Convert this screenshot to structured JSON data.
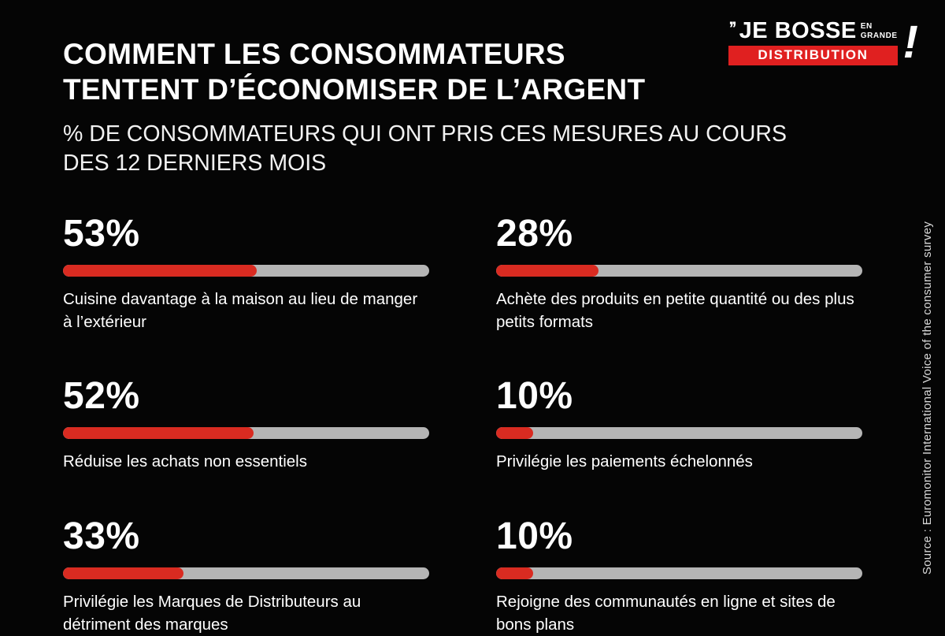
{
  "header": {
    "title_line1": "COMMENT LES CONSOMMATEURS",
    "title_line2": "TENTENT D’ÉCONOMISER DE L’ARGENT",
    "subtitle": "% DE CONSOMMATEURS QUI ONT PRIS CES MESURES AU COURS DES 12 DERNIERS MOIS"
  },
  "logo": {
    "quote": "’’",
    "name": "JE BOSSE",
    "stack_top": "EN",
    "stack_bottom": "GRANDE",
    "banner": "DISTRIBUTION",
    "exclamation": "!"
  },
  "source": "Source : Euromonitor International Voice of the consumer survey",
  "colors": {
    "background": "#050505",
    "accent_red": "#d92b21",
    "logo_red": "#e02020",
    "bar_track_gray": "#b5b5b5",
    "text_white": "#ffffff"
  },
  "chart_data": {
    "type": "bar",
    "title": "COMMENT LES CONSOMMATEURS TENTENT D’ÉCONOMISER DE L’ARGENT",
    "subtitle": "% DE CONSOMMATEURS QUI ONT PRIS CES MESURES AU COURS DES 12 DERNIERS MOIS",
    "unit": "%",
    "xlim": [
      0,
      100
    ],
    "legend": false,
    "grid": false,
    "items": [
      {
        "value": 53,
        "display": "53%",
        "label": "Cuisine davantage à la maison au lieu de manger à l’extérieur"
      },
      {
        "value": 28,
        "display": "28%",
        "label": "Achète des produits en petite quantité ou des plus petits formats"
      },
      {
        "value": 52,
        "display": "52%",
        "label": "Réduise les achats non essentiels"
      },
      {
        "value": 10,
        "display": "10%",
        "label": "Privilégie les paiements échelonnés"
      },
      {
        "value": 33,
        "display": "33%",
        "label": "Privilégie les Marques de Distributeurs au détriment des marques"
      },
      {
        "value": 10,
        "display": "10%",
        "label": "Rejoigne des communautés en ligne et sites de bons plans"
      }
    ]
  }
}
